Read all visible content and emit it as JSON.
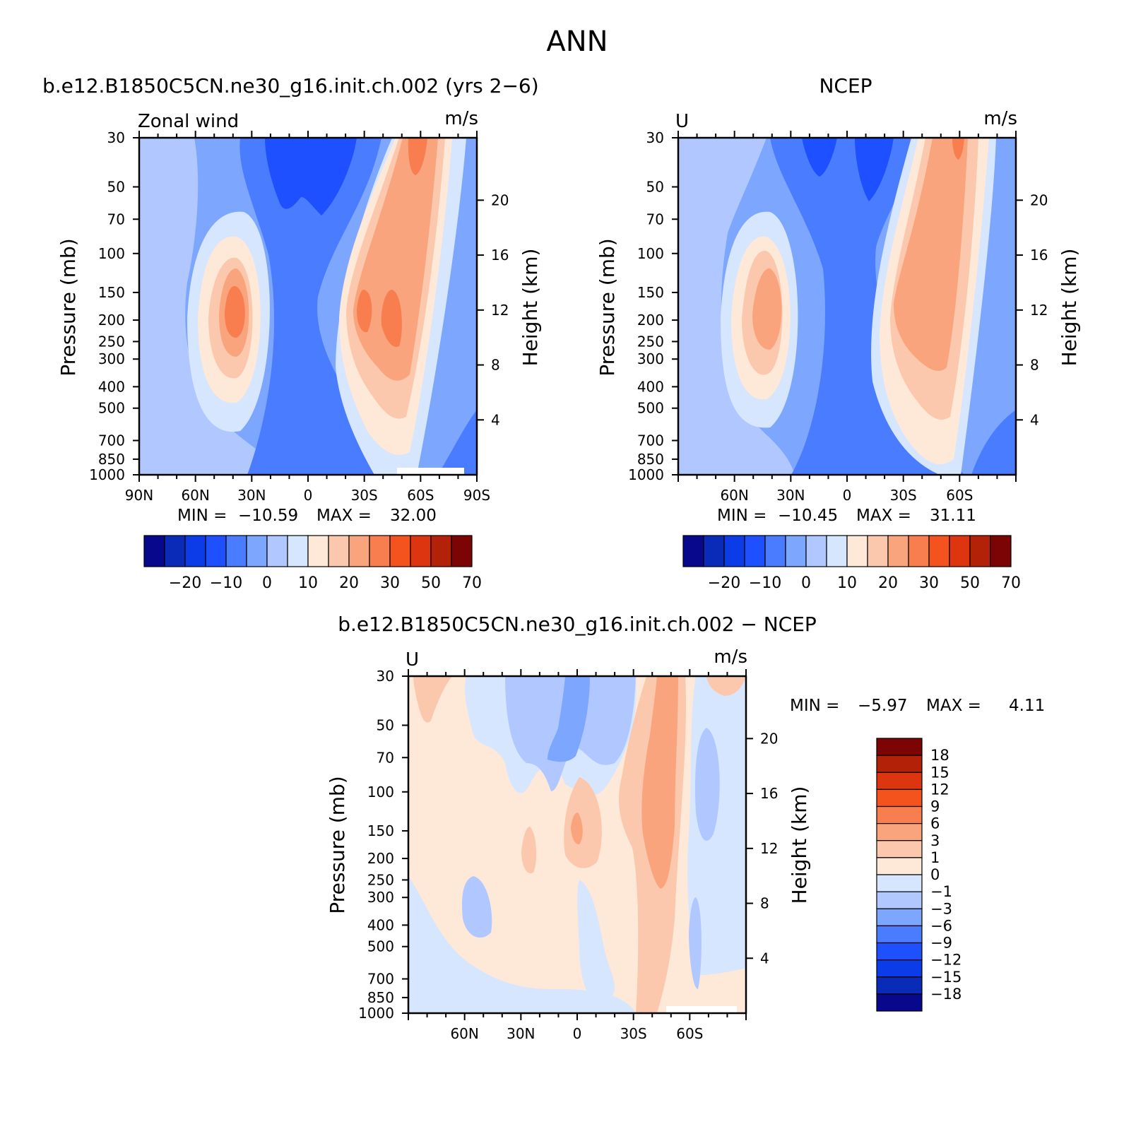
{
  "figure": {
    "title": "ANN"
  },
  "colors": {
    "abs_scale": [
      "#08088c",
      "#0a2ab8",
      "#0c3ce8",
      "#1e50ff",
      "#4a7cff",
      "#7da6ff",
      "#b0c8ff",
      "#d6e6ff",
      "#fee8d8",
      "#fcc8ad",
      "#f9a47c",
      "#f87d4f",
      "#f4531e",
      "#dc3510",
      "#b32208",
      "#7d0404"
    ],
    "diff_scale": [
      "#08088c",
      "#0a2ab8",
      "#0c3ce8",
      "#1e50ff",
      "#4a7cff",
      "#7da6ff",
      "#b0c8ff",
      "#d6e6ff",
      "#fee8d8",
      "#fcc8ad",
      "#f9a47c",
      "#f87d4f",
      "#f4531e",
      "#dc3510",
      "#b32208",
      "#7d0404"
    ]
  },
  "chart_data": [
    {
      "type": "heatmap",
      "title": "b.e12.B1850C5CN.ne30_g16.init.ch.002 (yrs 2−6)",
      "left_label": "Zonal wind",
      "right_label": "m/s",
      "ylabel": "Pressure (mb)",
      "y2label": "Height (km)",
      "x_tick_labels": [
        "90N",
        "60N",
        "30N",
        "0",
        "30S",
        "60S",
        "90S"
      ],
      "y_tick_labels": [
        "30",
        "50",
        "70",
        "100",
        "150",
        "200",
        "250",
        "300",
        "400",
        "500",
        "700",
        "850",
        "1000"
      ],
      "y2_tick_labels": [
        "20",
        "16",
        "12",
        "8",
        "4"
      ],
      "min_label": "MIN =",
      "min_value": "−10.59",
      "max_label": "MAX =",
      "max_value": "32.00",
      "colorbar_labels": [
        "−20",
        "−10",
        "0",
        "10",
        "20",
        "30",
        "50",
        "70"
      ],
      "jets": [
        {
          "lat": 30,
          "p": 200,
          "value": 32
        },
        {
          "lat": -40,
          "p": 180,
          "value": 31
        },
        {
          "lat": 5,
          "p": 70,
          "value": -10.59
        }
      ]
    },
    {
      "type": "heatmap",
      "title": "NCEP",
      "left_label": "U",
      "right_label": "m/s",
      "ylabel": "Pressure (mb)",
      "y2label": "Height (km)",
      "x_tick_labels": [
        "60N",
        "30N",
        "0",
        "30S",
        "60S"
      ],
      "y_tick_labels": [
        "30",
        "50",
        "70",
        "100",
        "150",
        "200",
        "250",
        "300",
        "400",
        "500",
        "700",
        "850",
        "1000"
      ],
      "y2_tick_labels": [
        "20",
        "16",
        "12",
        "8",
        "4"
      ],
      "min_label": "MIN =",
      "min_value": "−10.45",
      "max_label": "MAX =",
      "max_value": "31.11",
      "colorbar_labels": [
        "−20",
        "−10",
        "0",
        "10",
        "20",
        "30",
        "50",
        "70"
      ],
      "jets": [
        {
          "lat": 30,
          "p": 200,
          "value": 31
        },
        {
          "lat": -45,
          "p": 200,
          "value": 28
        },
        {
          "lat": 5,
          "p": 70,
          "value": -10.45
        }
      ]
    },
    {
      "type": "heatmap",
      "title": "b.e12.B1850C5CN.ne30_g16.init.ch.002 − NCEP",
      "left_label": "U",
      "right_label": "m/s",
      "ylabel": "Pressure (mb)",
      "y2label": "Height (km)",
      "x_tick_labels": [
        "60N",
        "30N",
        "0",
        "30S",
        "60S"
      ],
      "y_tick_labels": [
        "30",
        "50",
        "70",
        "100",
        "150",
        "200",
        "250",
        "300",
        "400",
        "500",
        "700",
        "850",
        "1000"
      ],
      "y2_tick_labels": [
        "20",
        "16",
        "12",
        "8",
        "4"
      ],
      "min_label": "MIN =",
      "min_value": "−5.97",
      "max_label": "MAX =",
      "max_value": "4.11",
      "colorbar_labels": [
        "18",
        "15",
        "12",
        "9",
        "6",
        "3",
        "1",
        "0",
        "−1",
        "−3",
        "−6",
        "−9",
        "−12",
        "−15",
        "−18"
      ],
      "extremes": [
        {
          "lat": -45,
          "p": 180,
          "value": 4.11
        },
        {
          "lat": 10,
          "p": 70,
          "value": -5.97
        }
      ]
    }
  ]
}
